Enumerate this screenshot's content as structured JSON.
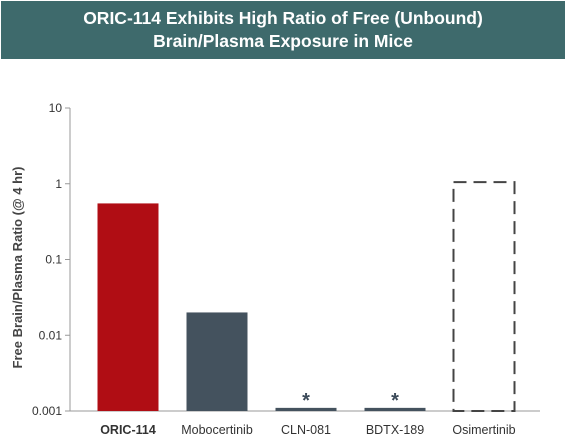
{
  "header": {
    "title_line1": "ORIC-114 Exhibits High Ratio of Free (Unbound)",
    "title_line2": "Brain/Plasma Exposure in Mice",
    "background_color": "#3e6a6c"
  },
  "chart_data": {
    "type": "bar",
    "title": "ORIC-114 Exhibits High Ratio of Free (Unbound) Brain/Plasma Exposure in Mice",
    "ylabel": "Free Brain/Plasma Ratio (@ 4 hr)",
    "xlabel": "",
    "y_scale": "log",
    "ylim": [
      0.001,
      10
    ],
    "y_ticks": [
      {
        "value": 10,
        "label": "10"
      },
      {
        "value": 1,
        "label": "1"
      },
      {
        "value": 0.1,
        "label": "0.1"
      },
      {
        "value": 0.01,
        "label": "0.01"
      },
      {
        "value": 0.001,
        "label": "0.001"
      }
    ],
    "grid": false,
    "categories": [
      "ORIC-114",
      "Mobocertinib",
      "CLN-081",
      "BDTX-189",
      "Osimertinib"
    ],
    "values": [
      0.55,
      0.02,
      0.0011,
      0.0011,
      1.05
    ],
    "bars": [
      {
        "category": "ORIC-114",
        "value": 0.55,
        "color": "#b00d14",
        "style": "solid",
        "label_bold": true,
        "annotation": ""
      },
      {
        "category": "Mobocertinib",
        "value": 0.02,
        "color": "#44525e",
        "style": "solid",
        "label_bold": false,
        "annotation": ""
      },
      {
        "category": "CLN-081",
        "value": 0.0011,
        "color": "#44525e",
        "style": "solid",
        "label_bold": false,
        "annotation": "*"
      },
      {
        "category": "BDTX-189",
        "value": 0.0011,
        "color": "#44525e",
        "style": "solid",
        "label_bold": false,
        "annotation": "*"
      },
      {
        "category": "Osimertinib",
        "value": 1.05,
        "color": "#444444",
        "style": "dashed",
        "label_bold": false,
        "annotation": ""
      }
    ]
  }
}
